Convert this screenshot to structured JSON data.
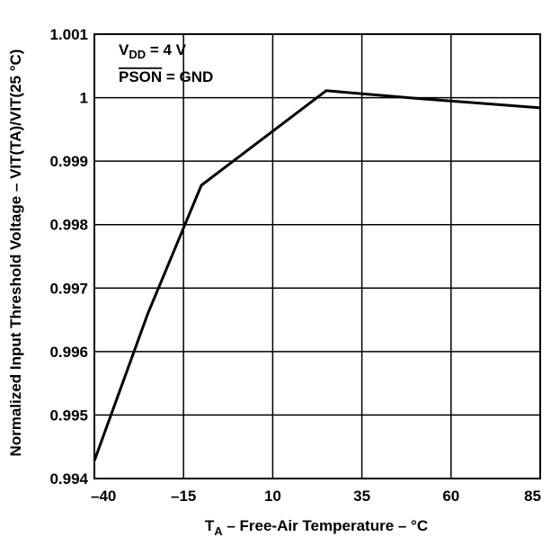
{
  "chart_data": {
    "type": "line",
    "xlabel": {
      "main": "T",
      "sub": "A",
      "rest": " – Free-Air Temperature – °C"
    },
    "ylabel": {
      "text": "Normalized Input Threshold Voltage – VIT(TA)/VIT(25 °C)"
    },
    "xlim": [
      -40,
      85
    ],
    "ylim": [
      0.994,
      1.001
    ],
    "x_ticks": [
      -40,
      -15,
      10,
      35,
      60,
      85
    ],
    "x_tick_labels": [
      "–40",
      "–15",
      "10",
      "35",
      "60",
      "85"
    ],
    "y_ticks": [
      0.994,
      0.995,
      0.996,
      0.997,
      0.998,
      0.999,
      1.0,
      1.001
    ],
    "y_tick_labels": [
      "0.994",
      "0.995",
      "0.996",
      "0.997",
      "0.998",
      "0.999",
      "1",
      "1.001"
    ],
    "grid": true,
    "series": [
      {
        "x": [
          -40,
          -25,
          -10,
          25,
          50,
          85
        ],
        "y": [
          0.99428,
          0.9966,
          0.99862,
          1.00011,
          0.99999,
          0.99984
        ]
      }
    ],
    "annotations": {
      "line1": {
        "main": "V",
        "sub": "DD",
        "rest": " = 4 V"
      },
      "line2": {
        "overline": "PSON",
        "rest": " = GND"
      }
    }
  }
}
